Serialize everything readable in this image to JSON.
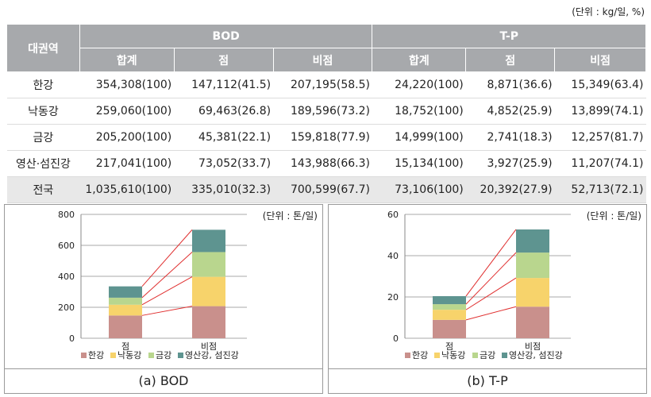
{
  "table": {
    "unit": "(단위 : kg/일, %)",
    "region_header": "대권역",
    "group_headers": [
      "BOD",
      "T-P"
    ],
    "sub_headers": [
      "합계",
      "점",
      "비점",
      "합계",
      "점",
      "비점"
    ],
    "rows": [
      {
        "region": "한강",
        "cells": [
          "354,308(100)",
          "147,112(41.5)",
          "207,195(58.5)",
          "24,220(100)",
          "8,871(36.6)",
          "15,349(63.4)"
        ]
      },
      {
        "region": "낙동강",
        "cells": [
          "259,060(100)",
          "69,463(26.8)",
          "189,596(73.2)",
          "18,752(100)",
          "4,852(25.9)",
          "13,899(74.1)"
        ]
      },
      {
        "region": "금강",
        "cells": [
          "205,200(100)",
          "45,381(22.1)",
          "159,818(77.9)",
          "14,999(100)",
          "2,741(18.3)",
          "12,257(81.7)"
        ]
      },
      {
        "region": "영산·섬진강",
        "cells": [
          "217,041(100)",
          "73,052(33.7)",
          "143,988(66.3)",
          "15,134(100)",
          "3,927(25.9)",
          "11,207(74.1)"
        ]
      },
      {
        "region": "전국",
        "cells": [
          "1,035,610(100)",
          "335,010(32.3)",
          "700,599(67.7)",
          "73,106(100)",
          "20,392(27.9)",
          "52,713(72.1)"
        ],
        "total": true
      }
    ]
  },
  "chart_data": [
    {
      "type": "bar",
      "stacked": true,
      "caption": "(a) BOD",
      "unit_label": "(단위 : 톤/일)",
      "categories": [
        "점",
        "비점"
      ],
      "series": [
        {
          "name": "한강",
          "values": [
            147.1,
            207.2
          ],
          "color": "#c9908c"
        },
        {
          "name": "낙동강",
          "values": [
            69.5,
            189.6
          ],
          "color": "#f7d36b"
        },
        {
          "name": "금강",
          "values": [
            45.4,
            159.8
          ],
          "color": "#b9d68e"
        },
        {
          "name": "영산강, 섬진강",
          "values": [
            73.1,
            144.0
          ],
          "color": "#5e9490"
        }
      ],
      "yticks": [
        0,
        200,
        400,
        600,
        800
      ],
      "ylim": [
        0,
        800
      ],
      "connector_color": "#e03030"
    },
    {
      "type": "bar",
      "stacked": true,
      "caption": "(b) T-P",
      "unit_label": "(단위 : 톤/일)",
      "categories": [
        "점",
        "비점"
      ],
      "series": [
        {
          "name": "한강",
          "values": [
            8.9,
            15.3
          ],
          "color": "#c9908c"
        },
        {
          "name": "낙동강",
          "values": [
            4.9,
            13.9
          ],
          "color": "#f7d36b"
        },
        {
          "name": "금강",
          "values": [
            2.7,
            12.3
          ],
          "color": "#b9d68e"
        },
        {
          "name": "영산강, 섬진강",
          "values": [
            3.9,
            11.2
          ],
          "color": "#5e9490"
        }
      ],
      "yticks": [
        0,
        20,
        40,
        60
      ],
      "ylim": [
        0,
        60
      ],
      "connector_color": "#e03030"
    }
  ]
}
